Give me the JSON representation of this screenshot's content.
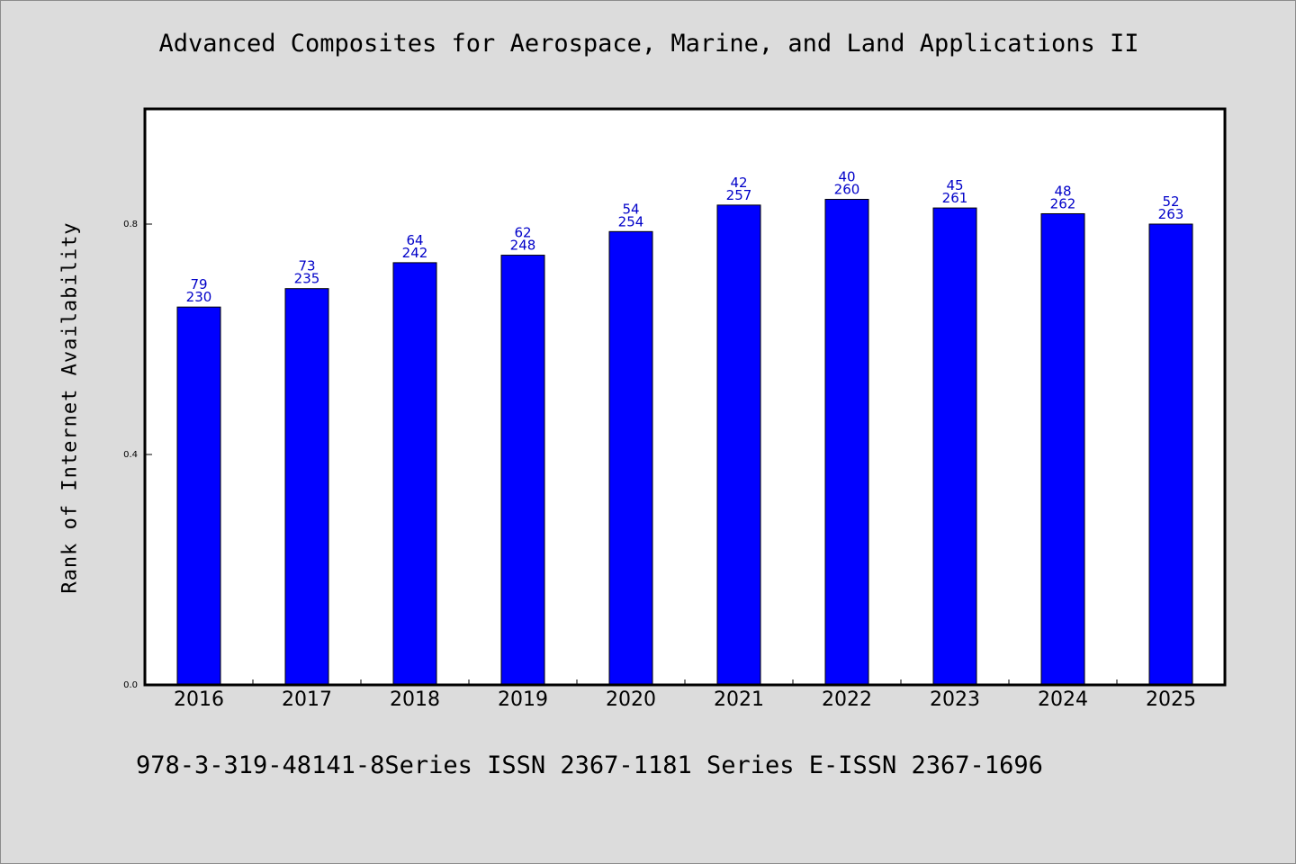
{
  "chart_data": {
    "type": "bar",
    "title": "Advanced Composites for Aerospace, Marine, and Land Applications II",
    "ylabel": "Rank of Internet Availability",
    "xlabel": "",
    "ylim": [
      0,
      1.0
    ],
    "y_ticks": [
      "0.0",
      "0.4",
      "0.8"
    ],
    "grid": false,
    "legend": "none",
    "bar_color": "#0000ff",
    "label_color": "#0000c8",
    "categories": [
      "2016",
      "2017",
      "2018",
      "2019",
      "2020",
      "2021",
      "2022",
      "2023",
      "2024",
      "2025"
    ],
    "values": [
      0.656,
      0.688,
      0.733,
      0.746,
      0.787,
      0.833,
      0.843,
      0.828,
      0.818,
      0.8
    ],
    "bar_labels_top": [
      "79",
      "73",
      "64",
      "62",
      "54",
      "42",
      "40",
      "45",
      "48",
      "52"
    ],
    "bar_labels_bottom": [
      "230",
      "235",
      "242",
      "248",
      "254",
      "257",
      "260",
      "261",
      "262",
      "263"
    ]
  },
  "footer": "978-3-319-48141-8Series ISSN 2367-1181 Series E-ISSN 2367-1696"
}
